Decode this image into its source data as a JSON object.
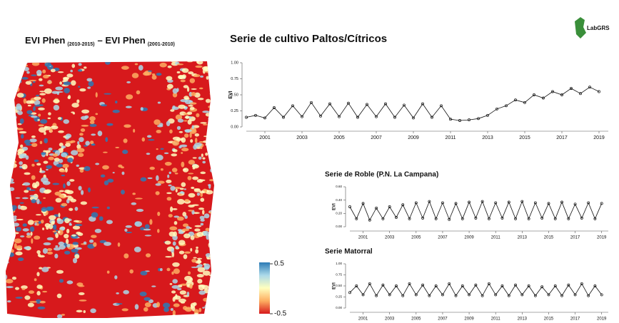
{
  "map": {
    "title": "EVI Phen",
    "title_sub": "(2010-2015)",
    "title_sep": "– EVI Phen",
    "title_sub2": "(2001-2010)",
    "colorbar": {
      "ticks": [
        0.5,
        -0.5
      ],
      "colors": [
        "#2c7bb6",
        "#abd9e9",
        "#ffffbf",
        "#fdae61",
        "#d7191c"
      ]
    }
  },
  "logo": "LabGRS",
  "chart_data": [
    {
      "type": "line",
      "title": "Serie de cultivo Paltos/Cítricos",
      "ylabel": "EVI",
      "color": "#111111",
      "x": [
        2000,
        2000.5,
        2001,
        2001.5,
        2002,
        2002.5,
        2003,
        2003.5,
        2004,
        2004.5,
        2005,
        2005.5,
        2006,
        2006.5,
        2007,
        2007.5,
        2008,
        2008.5,
        2009,
        2009.5,
        2010,
        2010.5,
        2011,
        2011.5,
        2012,
        2012.5,
        2013,
        2013.5,
        2014,
        2014.5,
        2015,
        2015.5,
        2016,
        2016.5,
        2017,
        2017.5,
        2018,
        2018.5,
        2019
      ],
      "values": [
        0.15,
        0.18,
        0.14,
        0.3,
        0.15,
        0.33,
        0.16,
        0.38,
        0.17,
        0.36,
        0.16,
        0.37,
        0.15,
        0.35,
        0.16,
        0.36,
        0.15,
        0.34,
        0.14,
        0.36,
        0.15,
        0.33,
        0.12,
        0.1,
        0.11,
        0.13,
        0.18,
        0.28,
        0.33,
        0.42,
        0.38,
        0.5,
        0.45,
        0.55,
        0.5,
        0.6,
        0.52,
        0.62,
        0.55
      ],
      "xlim": [
        2000,
        2019.5
      ],
      "xticks": [
        2001,
        2003,
        2005,
        2007,
        2009,
        2011,
        2013,
        2015,
        2017,
        2019
      ],
      "ylim": [
        0,
        1
      ],
      "yticks": [
        {
          "value": 0,
          "label": "0.00"
        },
        {
          "value": 0.25,
          "label": "0.25"
        },
        {
          "value": 0.5,
          "label": "0.50"
        },
        {
          "value": 0.75,
          "label": "0.75"
        },
        {
          "value": 1,
          "label": "1.00"
        }
      ]
    },
    {
      "type": "line",
      "title": "Serie de Roble (P.N. La Campana)",
      "ylabel": "EVI",
      "color": "#111111",
      "x": [
        2000,
        2000.5,
        2001,
        2001.5,
        2002,
        2002.5,
        2003,
        2003.5,
        2004,
        2004.5,
        2005,
        2005.5,
        2006,
        2006.5,
        2007,
        2007.5,
        2008,
        2008.5,
        2009,
        2009.5,
        2010,
        2010.5,
        2011,
        2011.5,
        2012,
        2012.5,
        2013,
        2013.5,
        2014,
        2014.5,
        2015,
        2015.5,
        2016,
        2016.5,
        2017,
        2017.5,
        2018,
        2018.5,
        2019
      ],
      "values": [
        0.3,
        0.12,
        0.35,
        0.1,
        0.28,
        0.12,
        0.3,
        0.14,
        0.33,
        0.12,
        0.36,
        0.13,
        0.38,
        0.12,
        0.36,
        0.11,
        0.35,
        0.12,
        0.37,
        0.13,
        0.38,
        0.12,
        0.36,
        0.13,
        0.37,
        0.12,
        0.38,
        0.12,
        0.36,
        0.13,
        0.35,
        0.12,
        0.37,
        0.12,
        0.34,
        0.13,
        0.36,
        0.12,
        0.35
      ],
      "xlim": [
        2000,
        2019.5
      ],
      "xticks": [
        2001,
        2003,
        2005,
        2007,
        2009,
        2011,
        2013,
        2015,
        2017,
        2019
      ],
      "ylim": [
        0,
        0.6
      ],
      "yticks": [
        {
          "value": 0,
          "label": "0.00"
        },
        {
          "value": 0.2,
          "label": "0.20"
        },
        {
          "value": 0.4,
          "label": "0.40"
        },
        {
          "value": 0.6,
          "label": "0.60"
        }
      ]
    },
    {
      "type": "line",
      "title": "Serie Matorral",
      "ylabel": "EVI",
      "color": "#111111",
      "x": [
        2000,
        2000.5,
        2001,
        2001.5,
        2002,
        2002.5,
        2003,
        2003.5,
        2004,
        2004.5,
        2005,
        2005.5,
        2006,
        2006.5,
        2007,
        2007.5,
        2008,
        2008.5,
        2009,
        2009.5,
        2010,
        2010.5,
        2011,
        2011.5,
        2012,
        2012.5,
        2013,
        2013.5,
        2014,
        2014.5,
        2015,
        2015.5,
        2016,
        2016.5,
        2017,
        2017.5,
        2018,
        2018.5,
        2019
      ],
      "values": [
        0.35,
        0.5,
        0.3,
        0.55,
        0.28,
        0.52,
        0.3,
        0.5,
        0.28,
        0.55,
        0.3,
        0.52,
        0.28,
        0.5,
        0.3,
        0.55,
        0.28,
        0.5,
        0.3,
        0.52,
        0.28,
        0.55,
        0.3,
        0.5,
        0.28,
        0.52,
        0.3,
        0.5,
        0.28,
        0.48,
        0.3,
        0.5,
        0.28,
        0.52,
        0.3,
        0.55,
        0.28,
        0.5,
        0.3
      ],
      "xlim": [
        2000,
        2019.5
      ],
      "xticks": [
        2001,
        2003,
        2005,
        2007,
        2009,
        2011,
        2013,
        2015,
        2017,
        2019
      ],
      "ylim": [
        0,
        1
      ],
      "yticks": [
        {
          "value": 0,
          "label": "0.00"
        },
        {
          "value": 0.25,
          "label": "0.25"
        },
        {
          "value": 0.5,
          "label": "0.50"
        },
        {
          "value": 0.75,
          "label": "0.75"
        },
        {
          "value": 1,
          "label": "1.00"
        }
      ]
    }
  ]
}
